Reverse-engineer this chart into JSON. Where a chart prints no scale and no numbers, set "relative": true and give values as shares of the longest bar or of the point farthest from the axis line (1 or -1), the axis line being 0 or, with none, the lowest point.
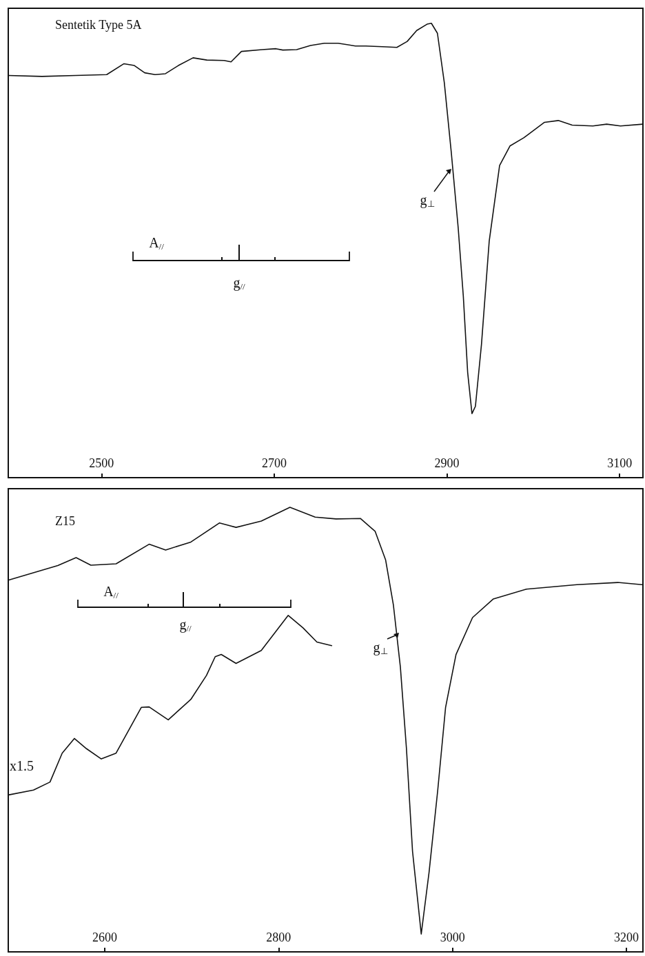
{
  "chart_data": [
    {
      "type": "line",
      "title": "Sentetik Type 5A",
      "relative": true,
      "xlim": [
        2392,
        3127
      ],
      "xticks": [
        2500,
        2700,
        2900,
        3100
      ],
      "tick_labels": "x",
      "series": [
        {
          "color": "#111111",
          "x": [
            2392,
            2431,
            2470,
            2506,
            2526,
            2538,
            2550,
            2562,
            2574,
            2589,
            2606,
            2622,
            2642,
            2650,
            2662,
            2686,
            2702,
            2710,
            2726,
            2742,
            2758,
            2774,
            2794,
            2806,
            2830,
            2842,
            2854,
            2865,
            2877,
            2882,
            2889,
            2897,
            2905,
            2913,
            2919,
            2924,
            2929,
            2933,
            2940,
            2949,
            2961,
            2973,
            2989,
            3013,
            3029,
            3045,
            3069,
            3085,
            3101,
            3127
          ],
          "values": [
            0.885,
            0.883,
            0.885,
            0.887,
            0.911,
            0.907,
            0.891,
            0.887,
            0.889,
            0.907,
            0.924,
            0.919,
            0.918,
            0.915,
            0.938,
            0.942,
            0.944,
            0.941,
            0.942,
            0.951,
            0.956,
            0.956,
            0.95,
            0.95,
            0.948,
            0.947,
            0.96,
            0.984,
            0.998,
            1,
            0.978,
            0.869,
            0.717,
            0.551,
            0.399,
            0.232,
            0.141,
            0.157,
            0.293,
            0.521,
            0.687,
            0.73,
            0.748,
            0.782,
            0.786,
            0.776,
            0.774,
            0.778,
            0.774,
            0.778
          ]
        }
      ],
      "annotations": [
        "A$_{//}$",
        "g$_{//}$",
        "g$_{⊥}$"
      ]
    },
    {
      "type": "line",
      "title": "Z15",
      "relative": true,
      "xlim": [
        2489,
        3219
      ],
      "xticks": [
        2600,
        2800,
        3000,
        3200
      ],
      "tick_labels": "x",
      "series": [
        {
          "color": "#111111",
          "x": [
            2489,
            2546,
            2567,
            2584,
            2613,
            2651,
            2670,
            2699,
            2732,
            2751,
            2780,
            2813,
            2842,
            2866,
            2894,
            2911,
            2923,
            2932,
            2940,
            2947,
            2954,
            2964,
            2973,
            2983,
            2992,
            3004,
            3023,
            3047,
            3085,
            3143,
            3190,
            3218
          ],
          "values": [
            0.836,
            0.869,
            0.887,
            0.87,
            0.873,
            0.917,
            0.904,
            0.922,
            0.965,
            0.955,
            0.969,
            1,
            0.978,
            0.974,
            0.975,
            0.946,
            0.882,
            0.78,
            0.641,
            0.457,
            0.226,
            0.04,
            0.179,
            0.364,
            0.55,
            0.669,
            0.752,
            0.794,
            0.816,
            0.826,
            0.831,
            0.826
          ]
        },
        {
          "name": "x1.5",
          "color": "#111111",
          "x": [
            2489,
            2518,
            2537,
            2551,
            2565,
            2579,
            2596,
            2613,
            2642,
            2651,
            2673,
            2699,
            2717,
            2727,
            2734,
            2751,
            2780,
            2811,
            2828,
            2844,
            2861
          ],
          "values": [
            0.353,
            0.364,
            0.382,
            0.447,
            0.48,
            0.457,
            0.434,
            0.447,
            0.55,
            0.551,
            0.522,
            0.568,
            0.622,
            0.664,
            0.669,
            0.649,
            0.678,
            0.757,
            0.729,
            0.697,
            0.689
          ]
        }
      ],
      "annotations": [
        "A$_{//}$",
        "g$_{//}$",
        "g$_{⊥}$"
      ]
    }
  ]
}
